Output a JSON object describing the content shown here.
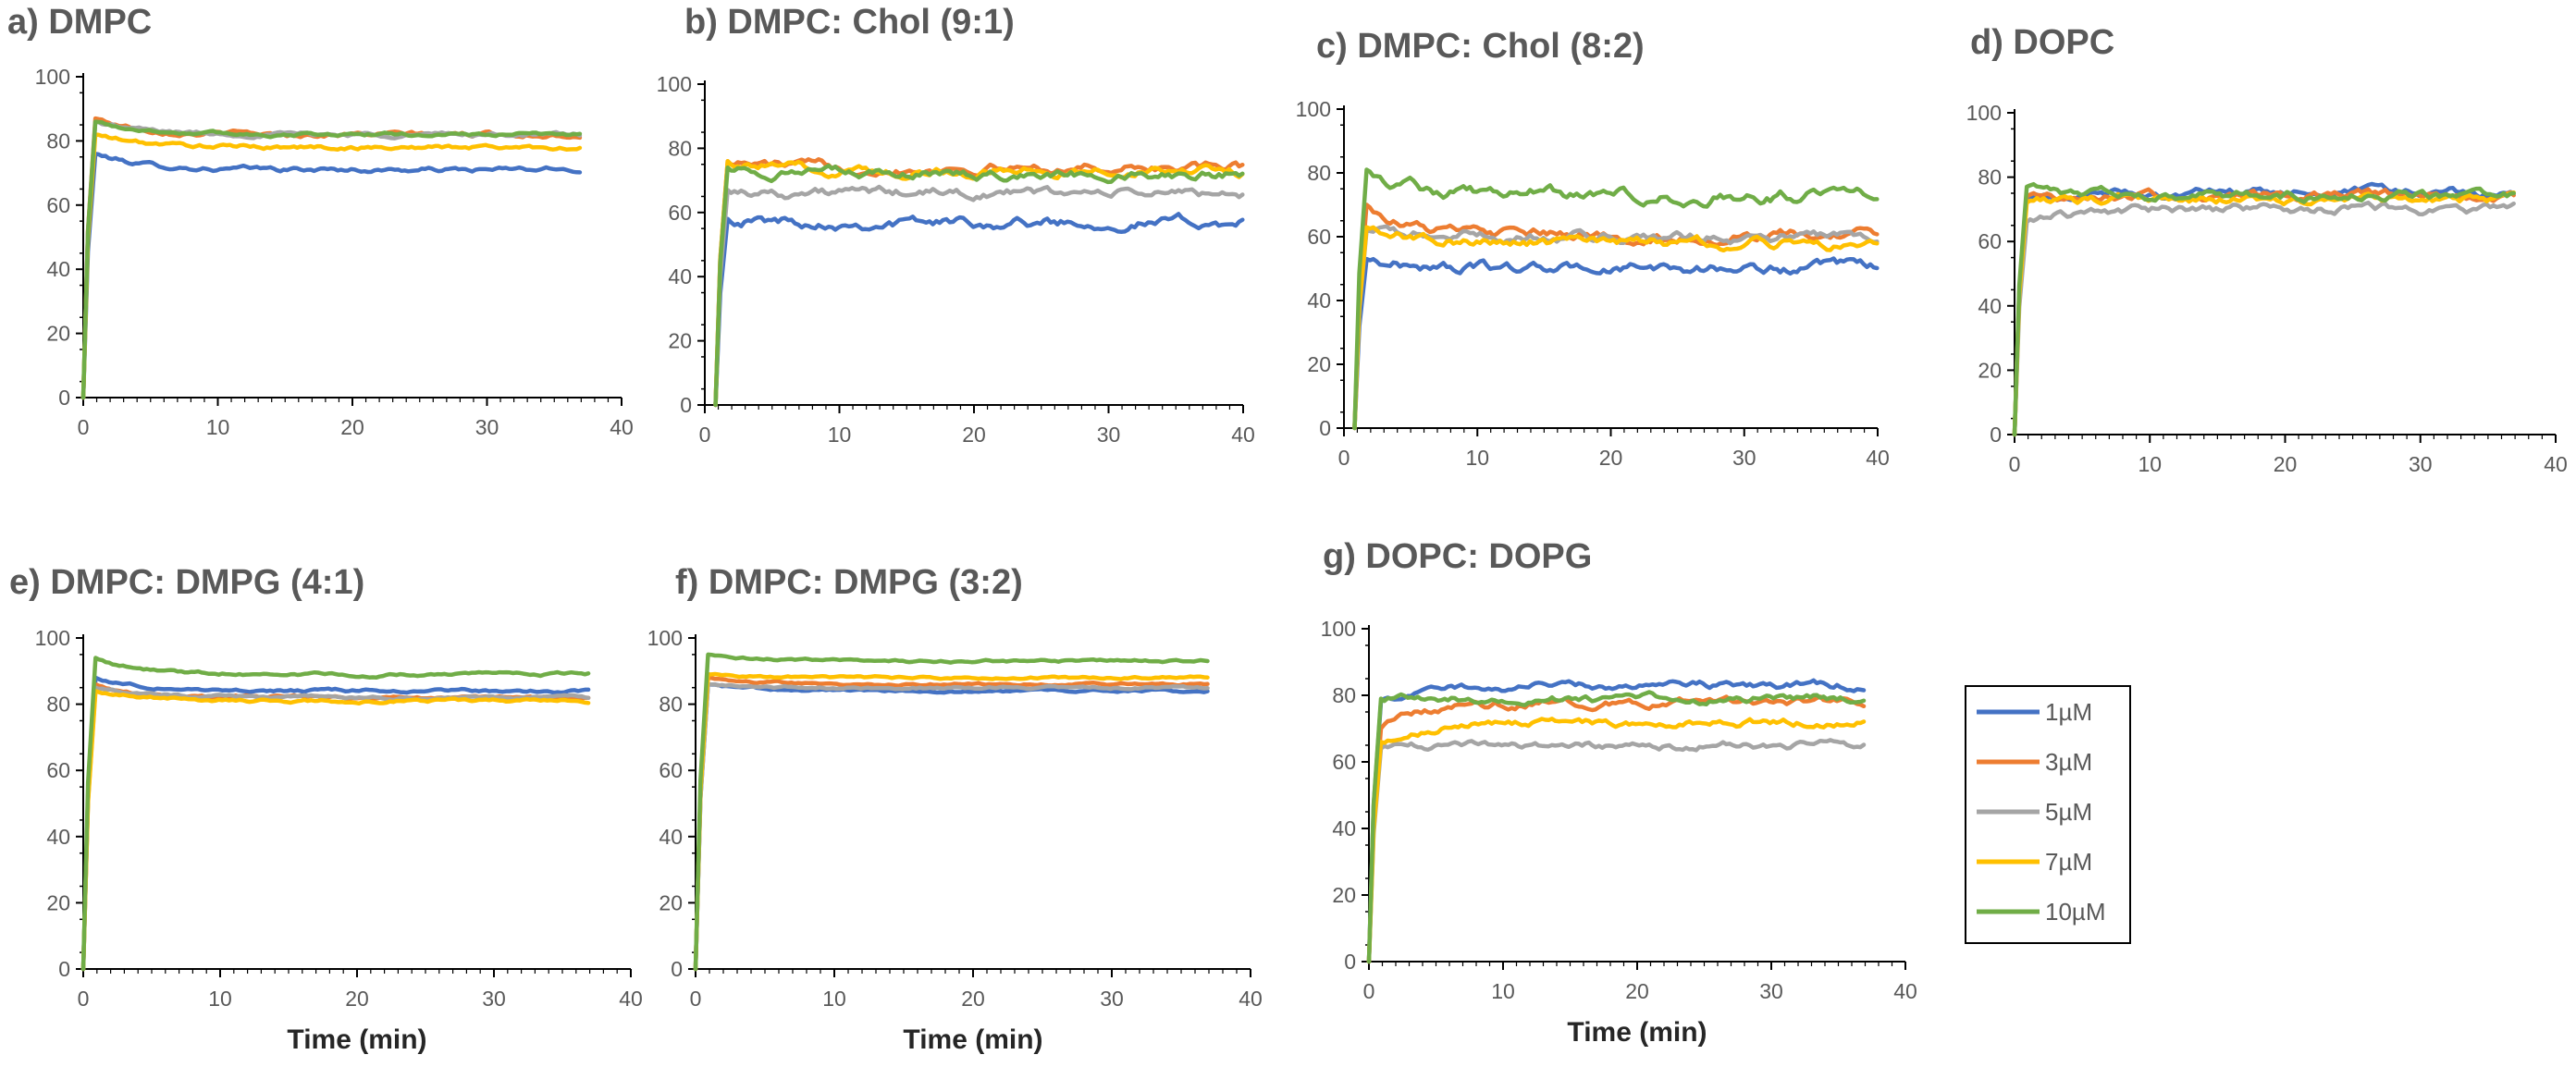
{
  "colors": {
    "1": "#4472C4",
    "3": "#ED7D31",
    "5": "#A5A5A5",
    "7": "#FFC000",
    "10": "#70AD47",
    "axis": "#000000",
    "text": "#595959"
  },
  "legend": {
    "items": [
      {
        "key": "1",
        "label": "1µM"
      },
      {
        "key": "3",
        "label": "3µM"
      },
      {
        "key": "5",
        "label": "5µM"
      },
      {
        "key": "7",
        "label": "7µM"
      },
      {
        "key": "10",
        "label": "10µM"
      }
    ]
  },
  "chart_data": [
    {
      "type": "line",
      "title": "a) DMPC",
      "xlabel": "",
      "ylabel": "",
      "xlim": [
        0,
        40
      ],
      "ylim": [
        0,
        100
      ],
      "xticks": [
        0,
        10,
        20,
        30,
        40
      ],
      "yticks": [
        0,
        20,
        40,
        60,
        80,
        100
      ],
      "x_start": 0,
      "x_end": 37,
      "series": [
        {
          "key": "1",
          "plateau": 71,
          "peak": 76,
          "noise": 0.8
        },
        {
          "key": "3",
          "plateau": 82,
          "peak": 87,
          "noise": 0.8
        },
        {
          "key": "5",
          "plateau": 82,
          "peak": 86,
          "noise": 0.7
        },
        {
          "key": "7",
          "plateau": 78,
          "peak": 82,
          "noise": 0.7
        },
        {
          "key": "10",
          "plateau": 82,
          "peak": 86,
          "noise": 0.6
        }
      ]
    },
    {
      "type": "line",
      "title": "b) DMPC: Chol (9:1)",
      "xlabel": "",
      "ylabel": "",
      "xlim": [
        0,
        40
      ],
      "ylim": [
        0,
        100
      ],
      "xticks": [
        0,
        10,
        20,
        30,
        40
      ],
      "yticks": [
        0,
        20,
        40,
        60,
        80,
        100
      ],
      "x_start": 0.8,
      "x_end": 40,
      "series": [
        {
          "key": "1",
          "plateau": 57,
          "peak": 58,
          "noise": 1.8
        },
        {
          "key": "3",
          "plateau": 74,
          "peak": 76,
          "noise": 1.6
        },
        {
          "key": "5",
          "plateau": 66,
          "peak": 67,
          "noise": 1.6
        },
        {
          "key": "7",
          "plateau": 73,
          "peak": 76,
          "noise": 1.6
        },
        {
          "key": "10",
          "plateau": 72,
          "peak": 74,
          "noise": 1.6
        }
      ]
    },
    {
      "type": "line",
      "title": "c) DMPC: Chol (8:2)",
      "xlabel": "",
      "ylabel": "",
      "xlim": [
        0,
        40
      ],
      "ylim": [
        0,
        100
      ],
      "xticks": [
        0,
        10,
        20,
        30,
        40
      ],
      "yticks": [
        0,
        20,
        40,
        60,
        80,
        100
      ],
      "x_start": 0.8,
      "x_end": 40,
      "series": [
        {
          "key": "1",
          "plateau": 50,
          "peak": 53,
          "noise": 1.8
        },
        {
          "key": "3",
          "plateau": 60,
          "peak": 70,
          "noise": 1.8
        },
        {
          "key": "5",
          "plateau": 60,
          "peak": 62,
          "noise": 1.8
        },
        {
          "key": "7",
          "plateau": 58,
          "peak": 63,
          "noise": 1.8
        },
        {
          "key": "10",
          "plateau": 73,
          "peak": 81,
          "noise": 2.2
        }
      ]
    },
    {
      "type": "line",
      "title": "d) DOPC",
      "xlabel": "",
      "ylabel": "",
      "xlim": [
        0,
        40
      ],
      "ylim": [
        0,
        100
      ],
      "xticks": [
        0,
        10,
        20,
        30,
        40
      ],
      "yticks": [
        0,
        20,
        40,
        60,
        80,
        100
      ],
      "x_start": 0,
      "x_end": 37,
      "series": [
        {
          "key": "1",
          "plateau": 75,
          "peak": 73,
          "noise": 1.5
        },
        {
          "key": "3",
          "plateau": 74,
          "peak": 74,
          "noise": 1.5
        },
        {
          "key": "5",
          "plateau": 70,
          "peak": 66,
          "noise": 1.5
        },
        {
          "key": "7",
          "plateau": 73,
          "peak": 72,
          "noise": 1.5
        },
        {
          "key": "10",
          "plateau": 74,
          "peak": 77,
          "noise": 1.5
        }
      ]
    },
    {
      "type": "line",
      "title": "e) DMPC: DMPG (4:1)",
      "xlabel": "Time (min)",
      "ylabel": "",
      "xlim": [
        0,
        40
      ],
      "ylim": [
        0,
        100
      ],
      "xticks": [
        0,
        10,
        20,
        30,
        40
      ],
      "yticks": [
        0,
        20,
        40,
        60,
        80,
        100
      ],
      "x_start": 0,
      "x_end": 37,
      "series": [
        {
          "key": "1",
          "plateau": 84,
          "peak": 88,
          "noise": 0.5
        },
        {
          "key": "3",
          "plateau": 82,
          "peak": 86,
          "noise": 0.5
        },
        {
          "key": "5",
          "plateau": 82,
          "peak": 85,
          "noise": 0.5
        },
        {
          "key": "7",
          "plateau": 81,
          "peak": 84,
          "noise": 0.5
        },
        {
          "key": "10",
          "plateau": 89,
          "peak": 94,
          "noise": 0.5
        }
      ]
    },
    {
      "type": "line",
      "title": "f) DMPC: DMPG (3:2)",
      "xlabel": "Time (min)",
      "ylabel": "",
      "xlim": [
        0,
        40
      ],
      "ylim": [
        0,
        100
      ],
      "xticks": [
        0,
        10,
        20,
        30,
        40
      ],
      "yticks": [
        0,
        20,
        40,
        60,
        80,
        100
      ],
      "x_start": 0,
      "x_end": 37,
      "series": [
        {
          "key": "1",
          "plateau": 84,
          "peak": 86,
          "noise": 0.4
        },
        {
          "key": "3",
          "plateau": 86,
          "peak": 88,
          "noise": 0.4
        },
        {
          "key": "5",
          "plateau": 85,
          "peak": 86,
          "noise": 0.4
        },
        {
          "key": "7",
          "plateau": 88,
          "peak": 89,
          "noise": 0.4
        },
        {
          "key": "10",
          "plateau": 93,
          "peak": 95,
          "noise": 0.4
        }
      ]
    },
    {
      "type": "line",
      "title": "g) DOPC: DOPG",
      "xlabel": "Time (min)",
      "ylabel": "",
      "xlim": [
        0,
        40
      ],
      "ylim": [
        0,
        100
      ],
      "xticks": [
        0,
        10,
        20,
        30,
        40
      ],
      "yticks": [
        0,
        20,
        40,
        60,
        80,
        100
      ],
      "x_start": 0,
      "x_end": 37,
      "series": [
        {
          "key": "1",
          "plateau": 83,
          "peak": 78,
          "noise": 1.2
        },
        {
          "key": "3",
          "plateau": 78,
          "peak": 70,
          "noise": 1.2
        },
        {
          "key": "5",
          "plateau": 65,
          "peak": 64,
          "noise": 1.2
        },
        {
          "key": "7",
          "plateau": 72,
          "peak": 66,
          "noise": 1.2
        },
        {
          "key": "10",
          "plateau": 79,
          "peak": 79,
          "noise": 1.2
        }
      ]
    }
  ]
}
